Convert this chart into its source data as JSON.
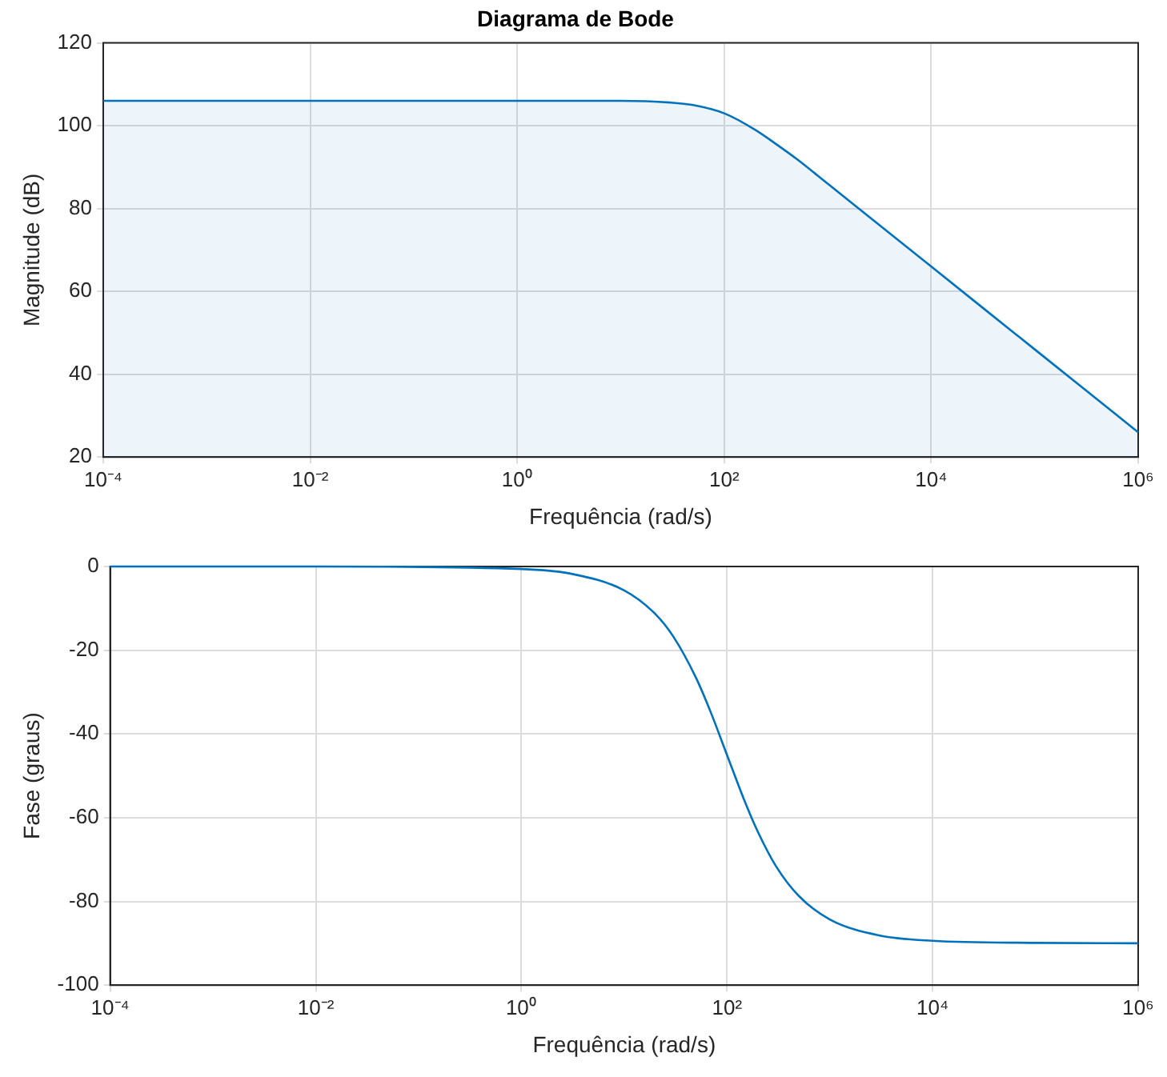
{
  "chart_data": [
    {
      "type": "area",
      "title": "Diagrama de Bode",
      "xlabel": "Frequência (rad/s)",
      "ylabel": "Magnitude (dB)",
      "log": "x",
      "grid": true,
      "legend": false,
      "marker": "none",
      "line_style": "solid",
      "xlim": [
        0.0001,
        1000000
      ],
      "xticks": [
        {
          "value": 0.0001,
          "label": "10⁻⁴"
        },
        {
          "value": 0.01,
          "label": "10⁻²"
        },
        {
          "value": 1,
          "label": "10⁰"
        },
        {
          "value": 100,
          "label": "10²"
        },
        {
          "value": 10000,
          "label": "10⁴"
        },
        {
          "value": 1000000,
          "label": "10⁶"
        }
      ],
      "ylim": [
        20,
        120
      ],
      "yticks": [
        20,
        40,
        60,
        80,
        100,
        120
      ],
      "series": [
        {
          "color": "#0072bd",
          "x": [
            0.0001,
            0.01,
            1,
            10,
            30,
            50,
            100,
            200,
            300,
            500,
            1000,
            10000,
            100000,
            1000000
          ],
          "values": [
            106,
            106,
            106,
            106,
            105.6,
            105,
            103,
            99,
            96,
            92,
            86,
            66,
            46,
            26
          ]
        }
      ]
    },
    {
      "type": "line",
      "xlabel": "Frequência (rad/s)",
      "ylabel": "Fase (graus)",
      "log": "x",
      "grid": true,
      "legend": false,
      "marker": "none",
      "line_style": "solid",
      "xlim": [
        0.0001,
        1000000
      ],
      "xticks": [
        {
          "value": 0.0001,
          "label": "10⁻⁴"
        },
        {
          "value": 0.01,
          "label": "10⁻²"
        },
        {
          "value": 1,
          "label": "10⁰"
        },
        {
          "value": 100,
          "label": "10²"
        },
        {
          "value": 10000,
          "label": "10⁴"
        },
        {
          "value": 1000000,
          "label": "10⁶"
        }
      ],
      "ylim": [
        -100,
        0
      ],
      "yticks": [
        -100,
        -80,
        -60,
        -40,
        -20,
        0
      ],
      "series": [
        {
          "color": "#0072bd",
          "x": [
            0.0001,
            0.01,
            1,
            3,
            10,
            20,
            30,
            50,
            70,
            100,
            150,
            200,
            300,
            500,
            1000,
            3000,
            10000,
            100000,
            1000000
          ],
          "values": [
            0,
            0,
            -0.6,
            -1.7,
            -5.7,
            -11.3,
            -16.7,
            -26.6,
            -35,
            -45,
            -56.3,
            -63.4,
            -71.6,
            -78.7,
            -84.3,
            -88.1,
            -89.4,
            -89.9,
            -90
          ]
        }
      ]
    }
  ]
}
